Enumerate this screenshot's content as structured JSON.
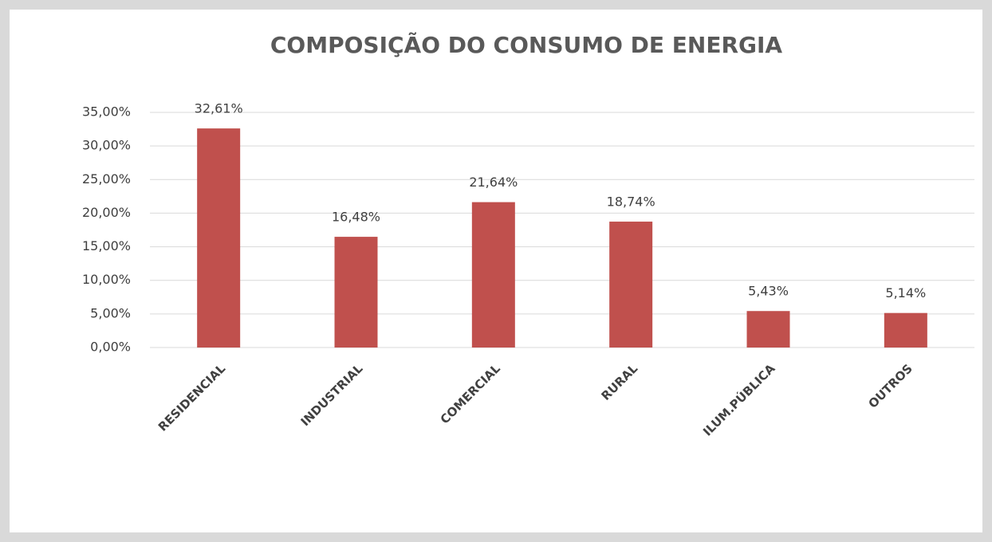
{
  "chart_data": {
    "type": "bar",
    "title": "COMPOSIÇÃO DO CONSUMO DE ENERGIA",
    "categories": [
      "RESIDENCIAL",
      "INDUSTRIAL",
      "COMERCIAL",
      "RURAL",
      "ILUM.PÚBLICA",
      "OUTROS"
    ],
    "values": [
      32.61,
      16.48,
      21.64,
      18.74,
      5.43,
      5.14
    ],
    "value_labels": [
      "32,61%",
      "16,48%",
      "21,64%",
      "18,74%",
      "5,43%",
      "5,14%"
    ],
    "color": "#c0504d",
    "ylim": [
      0,
      35
    ],
    "yticks": [
      {
        "value": 0,
        "label": "0,00%"
      },
      {
        "value": 5,
        "label": "5,00%"
      },
      {
        "value": 10,
        "label": "10,00%"
      },
      {
        "value": 15,
        "label": "15,00%"
      },
      {
        "value": 20,
        "label": "20,00%"
      },
      {
        "value": 25,
        "label": "25,00%"
      },
      {
        "value": 30,
        "label": "30,00%"
      },
      {
        "value": 35,
        "label": "35,00%"
      }
    ],
    "grid": true
  }
}
